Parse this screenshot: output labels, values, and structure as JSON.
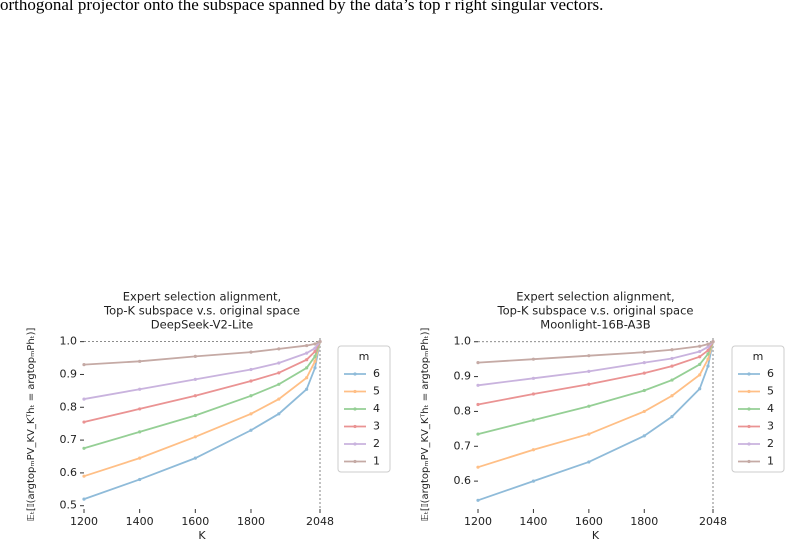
{
  "text": "orthogonal projector onto the subspace spanned by the data’s top r right singular vectors.",
  "chart_data": [
    {
      "type": "line",
      "title": [
        "Expert selection alignment,",
        "Top-K subspace v.s. original space",
        "DeepSeek-V2-Lite"
      ],
      "xlabel": "K",
      "ylabel": "𝔼ₜ[𝕀(argtopₘPV_KV_Kᵀhₜ = argtopₘPhₜ)]",
      "x": [
        1200,
        1400,
        1600,
        1800,
        1900,
        2000,
        2030,
        2048
      ],
      "xlim": [
        1200,
        2048
      ],
      "xticks": [
        1200,
        1400,
        1600,
        1800,
        2048
      ],
      "ylim": [
        0.49,
        1.005
      ],
      "yticks": [
        0.5,
        0.6,
        0.7,
        0.8,
        0.9,
        {
          "value": 1,
          "label": "1.0"
        }
      ],
      "guides": true,
      "legend_title": "m",
      "legend": "outside-right",
      "series": [
        {
          "name": "6",
          "color": "#8fbbd9",
          "values": [
            0.52,
            0.58,
            0.645,
            0.73,
            0.78,
            0.855,
            0.92,
            1.0
          ]
        },
        {
          "name": "5",
          "color": "#ffbf86",
          "values": [
            0.59,
            0.645,
            0.71,
            0.78,
            0.825,
            0.89,
            0.94,
            1.0
          ]
        },
        {
          "name": "4",
          "color": "#95cf95",
          "values": [
            0.675,
            0.725,
            0.775,
            0.835,
            0.87,
            0.92,
            0.955,
            1.0
          ]
        },
        {
          "name": "3",
          "color": "#ea9393",
          "values": [
            0.755,
            0.795,
            0.835,
            0.88,
            0.905,
            0.945,
            0.97,
            1.0
          ]
        },
        {
          "name": "2",
          "color": "#c9b3de",
          "values": [
            0.825,
            0.855,
            0.885,
            0.915,
            0.935,
            0.965,
            0.98,
            1.0
          ]
        },
        {
          "name": "1",
          "color": "#c5aaa5",
          "values": [
            0.93,
            0.94,
            0.955,
            0.968,
            0.978,
            0.988,
            0.993,
            1.0
          ]
        }
      ]
    },
    {
      "type": "line",
      "title": [
        "Expert selection alignment,",
        "Top-K subspace v.s. original space",
        "Moonlight-16B-A3B"
      ],
      "xlabel": "K",
      "ylabel": "𝔼ₜ[𝕀(argtopₘPV_KV_Kᵀhₜ = argtopₘPhₜ)]",
      "x": [
        1200,
        1400,
        1600,
        1800,
        1900,
        2000,
        2030,
        2048
      ],
      "xlim": [
        1200,
        2048
      ],
      "xticks": [
        1200,
        1400,
        1600,
        1800,
        2048
      ],
      "ylim": [
        0.52,
        1.005
      ],
      "yticks": [
        0.6,
        0.7,
        0.8,
        0.9,
        {
          "value": 1,
          "label": "1.0"
        }
      ],
      "guides": true,
      "legend_title": "m",
      "legend": "outside-right",
      "series": [
        {
          "name": "6",
          "color": "#8fbbd9",
          "values": [
            0.545,
            0.6,
            0.655,
            0.73,
            0.785,
            0.865,
            0.93,
            1.0
          ]
        },
        {
          "name": "5",
          "color": "#ffbf86",
          "values": [
            0.64,
            0.69,
            0.735,
            0.8,
            0.845,
            0.905,
            0.95,
            1.0
          ]
        },
        {
          "name": "4",
          "color": "#95cf95",
          "values": [
            0.735,
            0.775,
            0.815,
            0.86,
            0.89,
            0.935,
            0.965,
            1.0
          ]
        },
        {
          "name": "3",
          "color": "#ea9393",
          "values": [
            0.82,
            0.85,
            0.878,
            0.91,
            0.93,
            0.957,
            0.975,
            1.0
          ]
        },
        {
          "name": "2",
          "color": "#c9b3de",
          "values": [
            0.875,
            0.895,
            0.915,
            0.94,
            0.952,
            0.972,
            0.985,
            1.0
          ]
        },
        {
          "name": "1",
          "color": "#c5aaa5",
          "values": [
            0.94,
            0.95,
            0.96,
            0.97,
            0.977,
            0.987,
            0.993,
            1.0
          ]
        }
      ]
    }
  ]
}
